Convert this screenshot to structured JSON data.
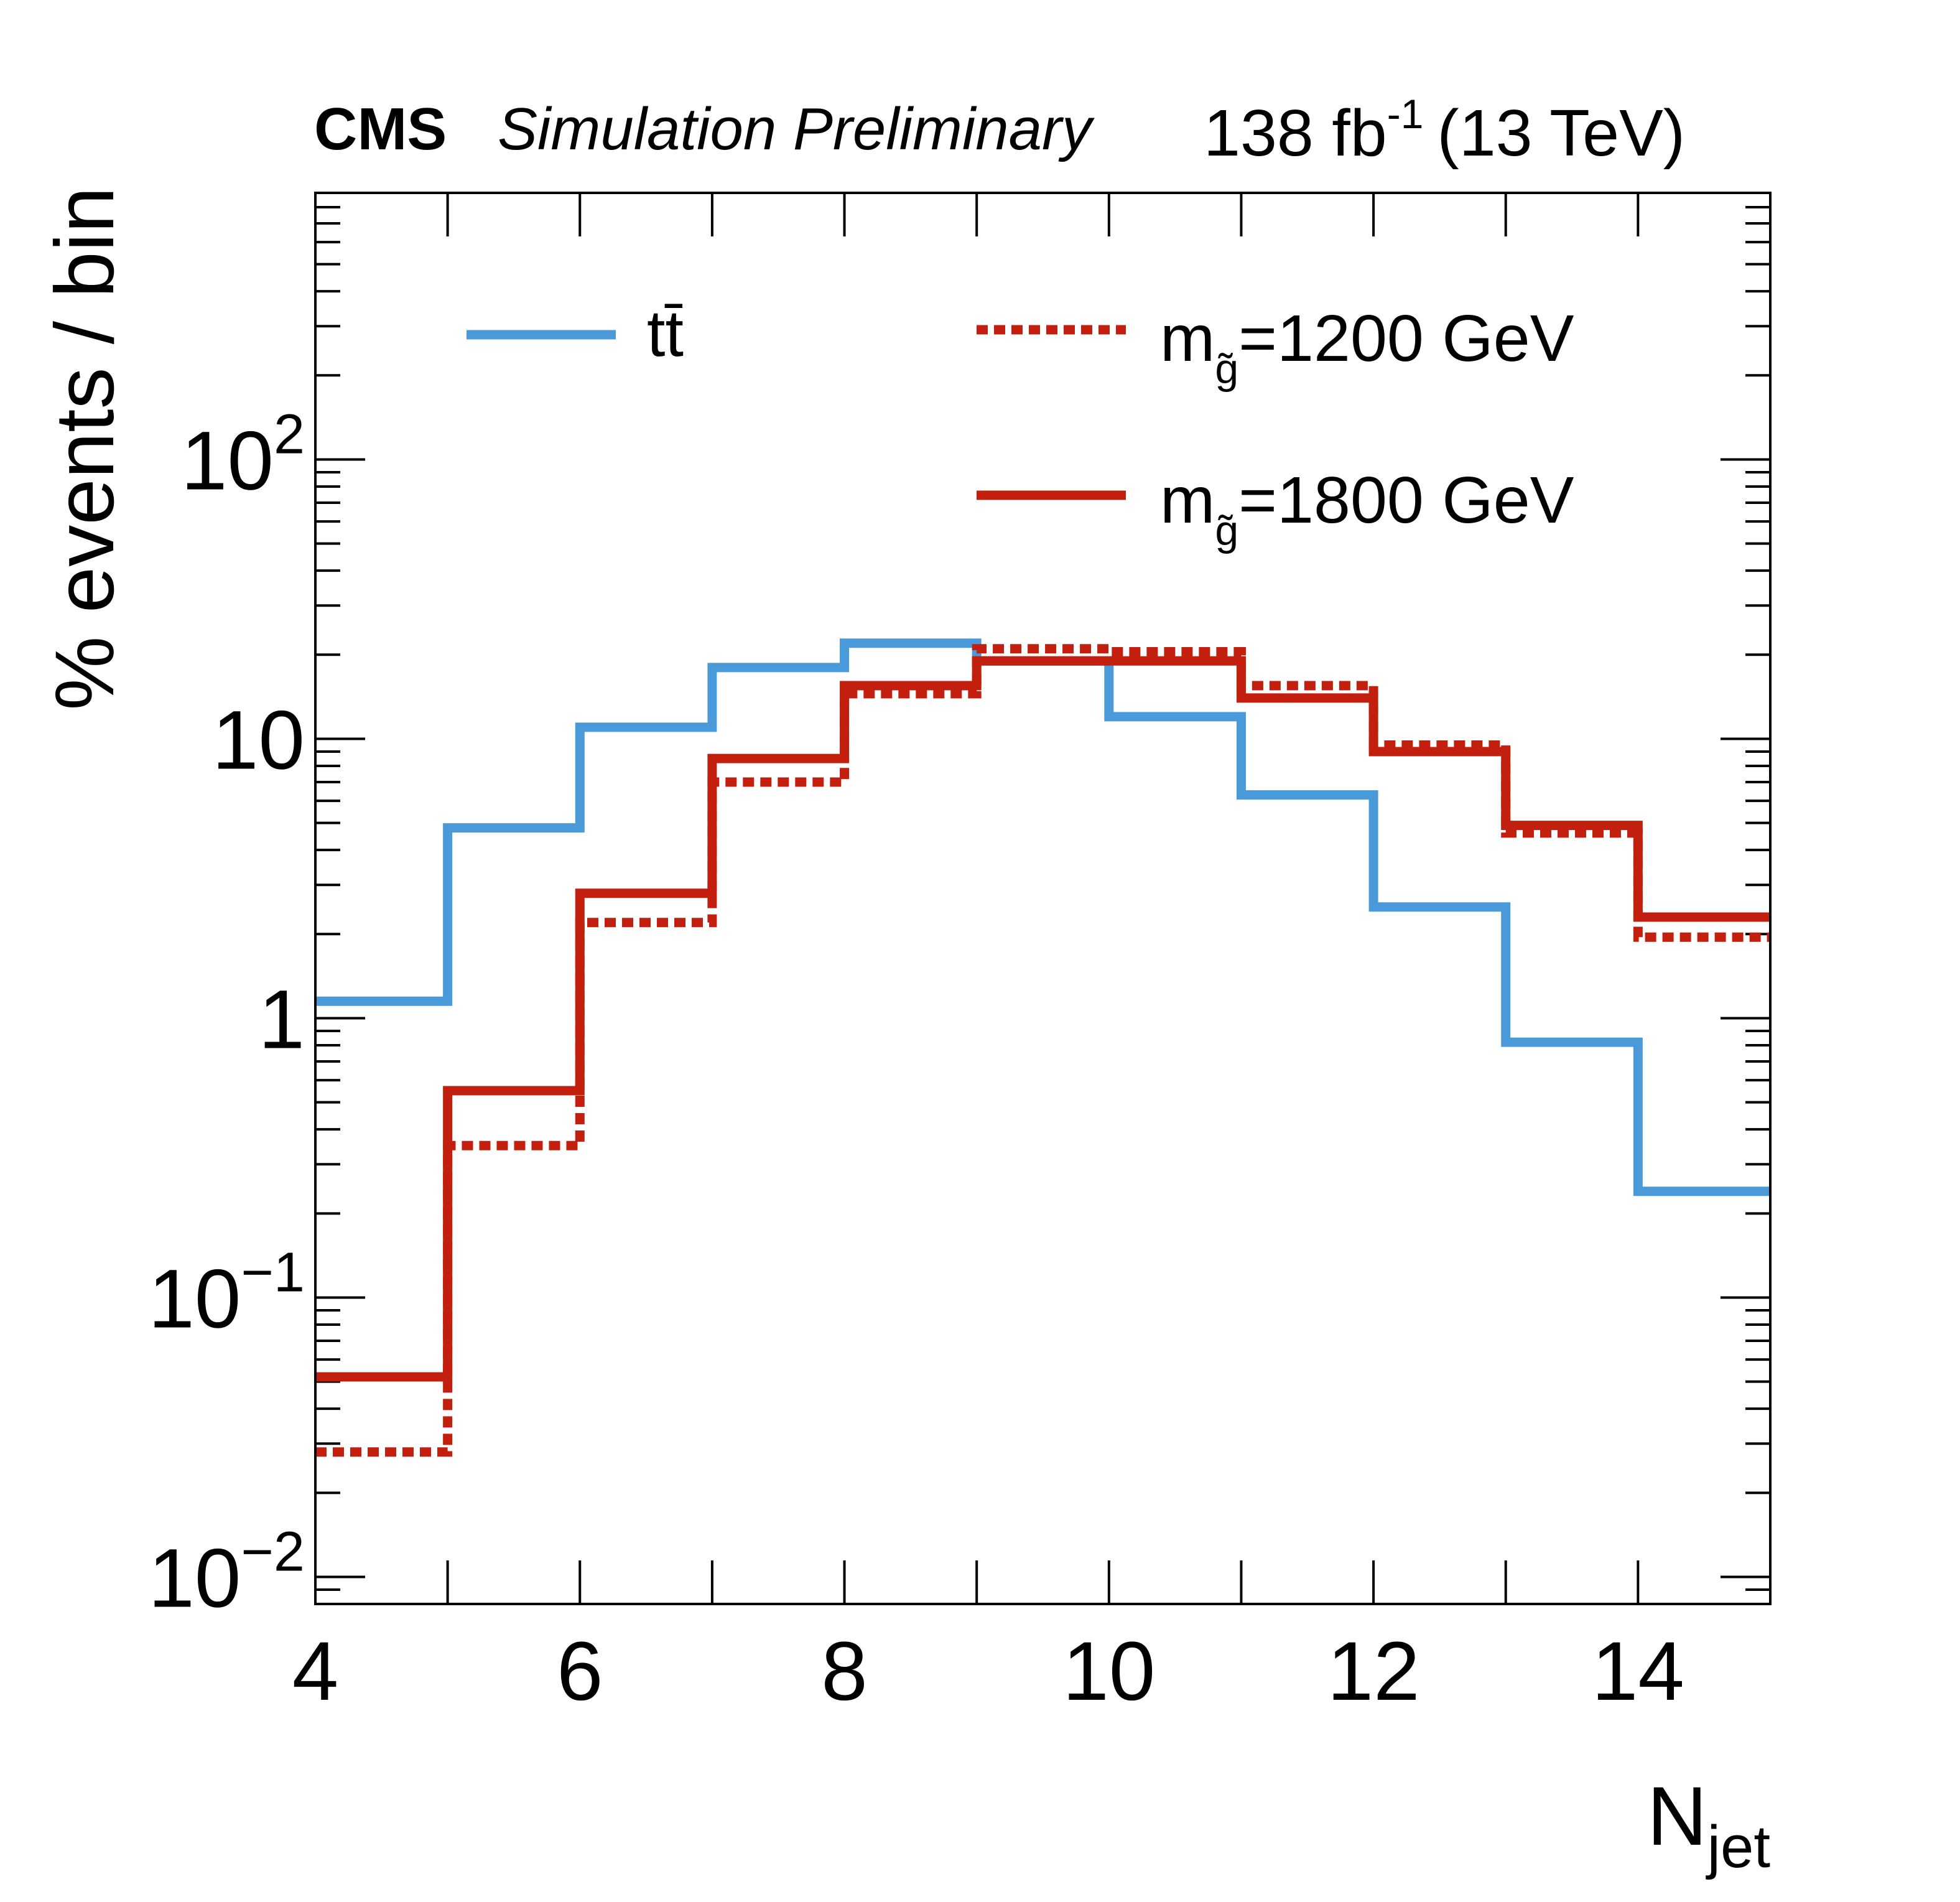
{
  "header": {
    "experiment": "CMS",
    "status": "Simulation Preliminary",
    "lumi_value": "138 fb",
    "lumi_exp": "-1",
    "energy": "(13 TeV)"
  },
  "legend": {
    "ttbar": "tt̄",
    "m1200_prefix": "m",
    "m1200_sub": "g̃",
    "m1200_value": "=1200 GeV",
    "m1800_prefix": "m",
    "m1800_sub": "g̃",
    "m1800_value": "=1800 GeV"
  },
  "chart_data": {
    "type": "step",
    "title": "",
    "xlabel": "N",
    "xlabel_sub": "jet",
    "ylabel": "% events / bin",
    "yscale": "log",
    "xlim": [
      4,
      15
    ],
    "ylim": [
      0.008,
      900
    ],
    "bin_edges": [
      4,
      5,
      6,
      7,
      8,
      9,
      10,
      11,
      12,
      13,
      14,
      15
    ],
    "x_ticks": [
      4,
      6,
      8,
      10,
      12,
      14
    ],
    "x_tick_labels": [
      "4",
      "6",
      "8",
      "10",
      "12",
      "14"
    ],
    "y_ticks": [
      {
        "value": 0.01,
        "base": "10",
        "exp": "−2"
      },
      {
        "value": 0.1,
        "base": "10",
        "exp": "−1"
      },
      {
        "value": 1,
        "base": "1",
        "exp": ""
      },
      {
        "value": 10,
        "base": "10",
        "exp": ""
      },
      {
        "value": 100,
        "base": "10",
        "exp": "2"
      }
    ],
    "series": [
      {
        "name": "tt̄",
        "style": "solid",
        "color": "#4a99d9",
        "values": [
          1.15,
          4.8,
          11.0,
          18.0,
          22.0,
          19.0,
          12.0,
          6.3,
          2.5,
          0.82,
          0.24
        ]
      },
      {
        "name": "m_g̃=1200 GeV",
        "style": "dotted",
        "color": "#c21f0e",
        "values": [
          0.028,
          0.35,
          2.2,
          7.0,
          14.5,
          21.0,
          20.5,
          15.5,
          9.5,
          4.6,
          1.95
        ]
      },
      {
        "name": "m_g̃=1800 GeV",
        "style": "solid",
        "color": "#c21f0e",
        "values": [
          0.052,
          0.55,
          2.8,
          8.5,
          15.5,
          19.0,
          19.0,
          14.0,
          9.0,
          4.9,
          2.3
        ]
      }
    ]
  }
}
